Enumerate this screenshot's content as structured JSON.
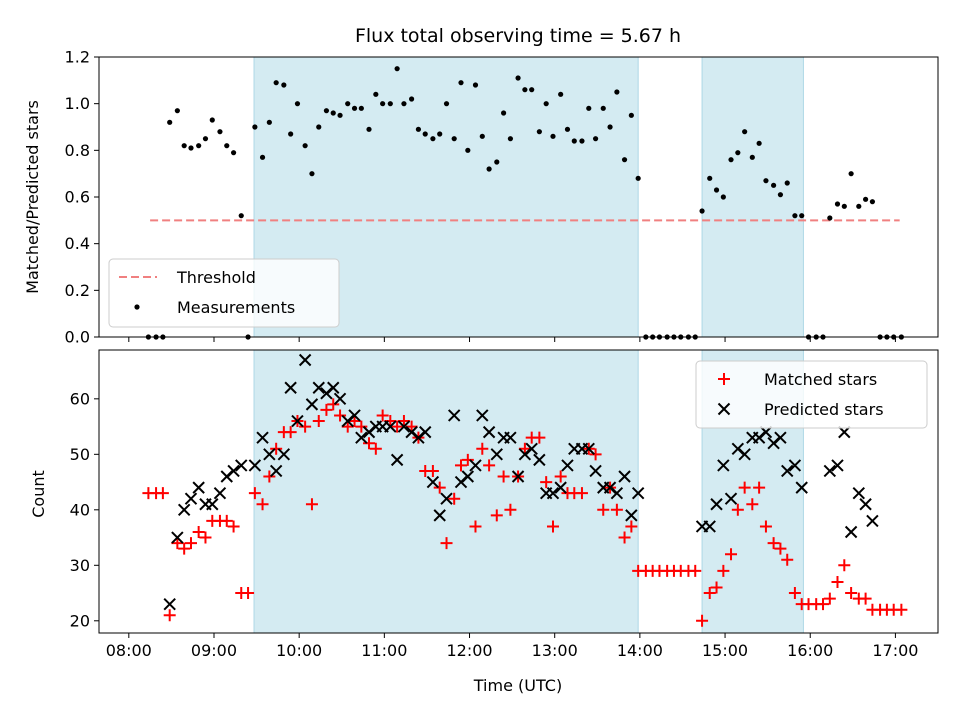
{
  "chart_data": [
    {
      "type": "scatter",
      "title": "Flux total observing time = 5.67 h",
      "xlabel": "",
      "ylabel": "Matched/Predicted stars",
      "xlim": [
        7.65,
        17.5
      ],
      "ylim": [
        0,
        1.2
      ],
      "yticks": [
        "0.0",
        "0.2",
        "0.4",
        "0.6",
        "0.8",
        "1.0",
        "1.2"
      ],
      "shaded_ranges": [
        [
          9.47,
          13.98
        ],
        [
          14.73,
          15.92
        ]
      ],
      "shade_color": "#add8e6",
      "legend_position": "lower-left",
      "series": [
        {
          "name": "Threshold",
          "kind": "dashed-line",
          "color": "#f08080",
          "x": [
            8.25,
            17.05
          ],
          "y": [
            0.5,
            0.5
          ]
        },
        {
          "name": "Measurements",
          "kind": "dot",
          "color": "#000000",
          "x": [
            8.23,
            8.32,
            8.4,
            8.48,
            8.57,
            8.65,
            8.73,
            8.82,
            8.9,
            8.98,
            9.07,
            9.15,
            9.23,
            9.32,
            9.4,
            9.48,
            9.57,
            9.65,
            9.73,
            9.82,
            9.9,
            9.98,
            10.07,
            10.15,
            10.23,
            10.32,
            10.4,
            10.48,
            10.57,
            10.65,
            10.73,
            10.82,
            10.9,
            10.98,
            11.07,
            11.15,
            11.23,
            11.32,
            11.4,
            11.48,
            11.57,
            11.65,
            11.73,
            11.82,
            11.9,
            11.98,
            12.07,
            12.15,
            12.23,
            12.32,
            12.4,
            12.48,
            12.57,
            12.65,
            12.73,
            12.82,
            12.9,
            12.98,
            13.07,
            13.15,
            13.23,
            13.32,
            13.4,
            13.48,
            13.57,
            13.65,
            13.73,
            13.82,
            13.9,
            13.98,
            14.07,
            14.15,
            14.23,
            14.32,
            14.4,
            14.48,
            14.57,
            14.65,
            14.73,
            14.82,
            14.9,
            14.98,
            15.07,
            15.15,
            15.23,
            15.32,
            15.4,
            15.48,
            15.57,
            15.65,
            15.73,
            15.82,
            15.9,
            15.98,
            16.07,
            16.15,
            16.23,
            16.32,
            16.4,
            16.48,
            16.57,
            16.65,
            16.73,
            16.82,
            16.9,
            16.98,
            17.07
          ],
          "y": [
            0,
            0,
            0,
            0.92,
            0.97,
            0.82,
            0.81,
            0.82,
            0.85,
            0.93,
            0.88,
            0.82,
            0.79,
            0.52,
            0,
            0.9,
            0.77,
            0.92,
            1.09,
            1.08,
            0.87,
            1.0,
            0.82,
            0.7,
            0.9,
            0.97,
            0.96,
            0.95,
            1.0,
            0.98,
            0.98,
            0.89,
            1.04,
            1.0,
            1.0,
            1.15,
            1.0,
            1.02,
            0.89,
            0.87,
            0.85,
            0.87,
            1.0,
            0.85,
            1.09,
            0.8,
            1.08,
            0.86,
            0.72,
            0.75,
            0.96,
            0.85,
            1.11,
            1.06,
            1.06,
            0.88,
            1.0,
            0.86,
            1.04,
            0.89,
            0.84,
            0.84,
            0.98,
            0.85,
            0.98,
            0.9,
            1.05,
            0.76,
            0.95,
            0.68,
            0,
            0,
            0,
            0,
            0,
            0,
            0,
            0,
            0.54,
            0.68,
            0.63,
            0.6,
            0.76,
            0.79,
            0.88,
            0.77,
            0.83,
            0.67,
            0.65,
            0.61,
            0.66,
            0.52,
            0.52,
            0,
            0,
            0,
            0.51,
            0.57,
            0.56,
            0.7,
            0.56,
            0.59,
            0.58,
            0,
            0,
            0,
            0
          ]
        }
      ]
    },
    {
      "type": "scatter",
      "title": "",
      "xlabel": "Time (UTC)",
      "ylabel": "Count",
      "xlim": [
        7.65,
        17.5
      ],
      "ylim": [
        17.8,
        68.8
      ],
      "yticks": [
        "20",
        "30",
        "40",
        "50",
        "60"
      ],
      "xticks": [
        "08:00",
        "09:00",
        "10:00",
        "11:00",
        "12:00",
        "13:00",
        "14:00",
        "15:00",
        "16:00",
        "17:00"
      ],
      "shaded_ranges": [
        [
          9.47,
          13.98
        ],
        [
          14.73,
          15.92
        ]
      ],
      "shade_color": "#add8e6",
      "legend_position": "top-right",
      "series": [
        {
          "name": "Matched stars",
          "kind": "plus",
          "color": "#ff0000",
          "x": [
            8.23,
            8.32,
            8.4,
            8.48,
            8.57,
            8.65,
            8.73,
            8.82,
            8.9,
            8.98,
            9.07,
            9.15,
            9.23,
            9.32,
            9.4,
            9.48,
            9.57,
            9.65,
            9.73,
            9.82,
            9.9,
            9.98,
            10.07,
            10.15,
            10.23,
            10.32,
            10.4,
            10.48,
            10.57,
            10.65,
            10.73,
            10.82,
            10.9,
            10.98,
            11.07,
            11.15,
            11.23,
            11.32,
            11.4,
            11.48,
            11.57,
            11.65,
            11.73,
            11.82,
            11.9,
            11.98,
            12.07,
            12.15,
            12.23,
            12.32,
            12.4,
            12.48,
            12.57,
            12.65,
            12.73,
            12.82,
            12.9,
            12.98,
            13.07,
            13.15,
            13.23,
            13.32,
            13.4,
            13.48,
            13.57,
            13.65,
            13.73,
            13.82,
            13.9,
            13.98,
            14.07,
            14.15,
            14.23,
            14.32,
            14.4,
            14.48,
            14.57,
            14.65,
            14.73,
            14.82,
            14.9,
            14.98,
            15.07,
            15.15,
            15.23,
            15.32,
            15.4,
            15.48,
            15.57,
            15.65,
            15.73,
            15.82,
            15.9,
            15.98,
            16.07,
            16.15,
            16.23,
            16.32,
            16.4,
            16.48,
            16.57,
            16.65,
            16.73,
            16.82,
            16.9,
            16.98,
            17.07
          ],
          "y": [
            43,
            43,
            43,
            21,
            34,
            33,
            34,
            36,
            35,
            38,
            38,
            38,
            37,
            25,
            25,
            43,
            41,
            46,
            51,
            54,
            54,
            56,
            55,
            41,
            56,
            58,
            59,
            57,
            55,
            56,
            55,
            52,
            51,
            57,
            56,
            55,
            56,
            55,
            53,
            47,
            47,
            44,
            34,
            42,
            48,
            49,
            37,
            51,
            48,
            39,
            46,
            40,
            46,
            51,
            53,
            53,
            45,
            37,
            46,
            43,
            43,
            43,
            51,
            50,
            40,
            44,
            40,
            35,
            37,
            29,
            29,
            29,
            29,
            29,
            29,
            29,
            29,
            29,
            20,
            25,
            26,
            29,
            32,
            40,
            44,
            41,
            44,
            37,
            34,
            33,
            31,
            25,
            23,
            23,
            23,
            23,
            24,
            27,
            30,
            25,
            24,
            24,
            22,
            22,
            22,
            22,
            22
          ]
        },
        {
          "name": "Predicted stars",
          "kind": "x",
          "color": "#000000",
          "x": [
            8.48,
            8.57,
            8.65,
            8.73,
            8.82,
            8.9,
            8.98,
            9.07,
            9.15,
            9.23,
            9.32,
            9.48,
            9.57,
            9.65,
            9.73,
            9.82,
            9.9,
            9.98,
            10.07,
            10.15,
            10.23,
            10.32,
            10.4,
            10.48,
            10.57,
            10.65,
            10.73,
            10.82,
            10.9,
            10.98,
            11.07,
            11.15,
            11.23,
            11.32,
            11.4,
            11.48,
            11.57,
            11.65,
            11.73,
            11.82,
            11.9,
            11.98,
            12.07,
            12.15,
            12.23,
            12.32,
            12.4,
            12.48,
            12.57,
            12.65,
            12.73,
            12.82,
            12.9,
            12.98,
            13.07,
            13.15,
            13.23,
            13.32,
            13.4,
            13.48,
            13.57,
            13.65,
            13.73,
            13.82,
            13.9,
            13.98,
            14.73,
            14.82,
            14.9,
            14.98,
            15.07,
            15.15,
            15.23,
            15.32,
            15.4,
            15.48,
            15.57,
            15.65,
            15.73,
            15.82,
            15.9,
            16.23,
            16.32,
            16.4,
            16.48,
            16.57,
            16.65,
            16.73
          ],
          "y": [
            23,
            35,
            40,
            42,
            44,
            41,
            41,
            43,
            46,
            47,
            48,
            48,
            53,
            50,
            47,
            50,
            62,
            56,
            67,
            59,
            62,
            61,
            62,
            60,
            56,
            57,
            53,
            54,
            55,
            55,
            55,
            49,
            55,
            54,
            53,
            54,
            45,
            39,
            42,
            57,
            45,
            46,
            48,
            57,
            54,
            50,
            53,
            53,
            46,
            50,
            51,
            49,
            43,
            43,
            44,
            48,
            51,
            51,
            51,
            47,
            44,
            44,
            43,
            46,
            39,
            43,
            37,
            37,
            41,
            48,
            42,
            51,
            50,
            53,
            53,
            54,
            52,
            53,
            47,
            48,
            44,
            47,
            48,
            54,
            36,
            43,
            41,
            38
          ]
        }
      ]
    }
  ]
}
